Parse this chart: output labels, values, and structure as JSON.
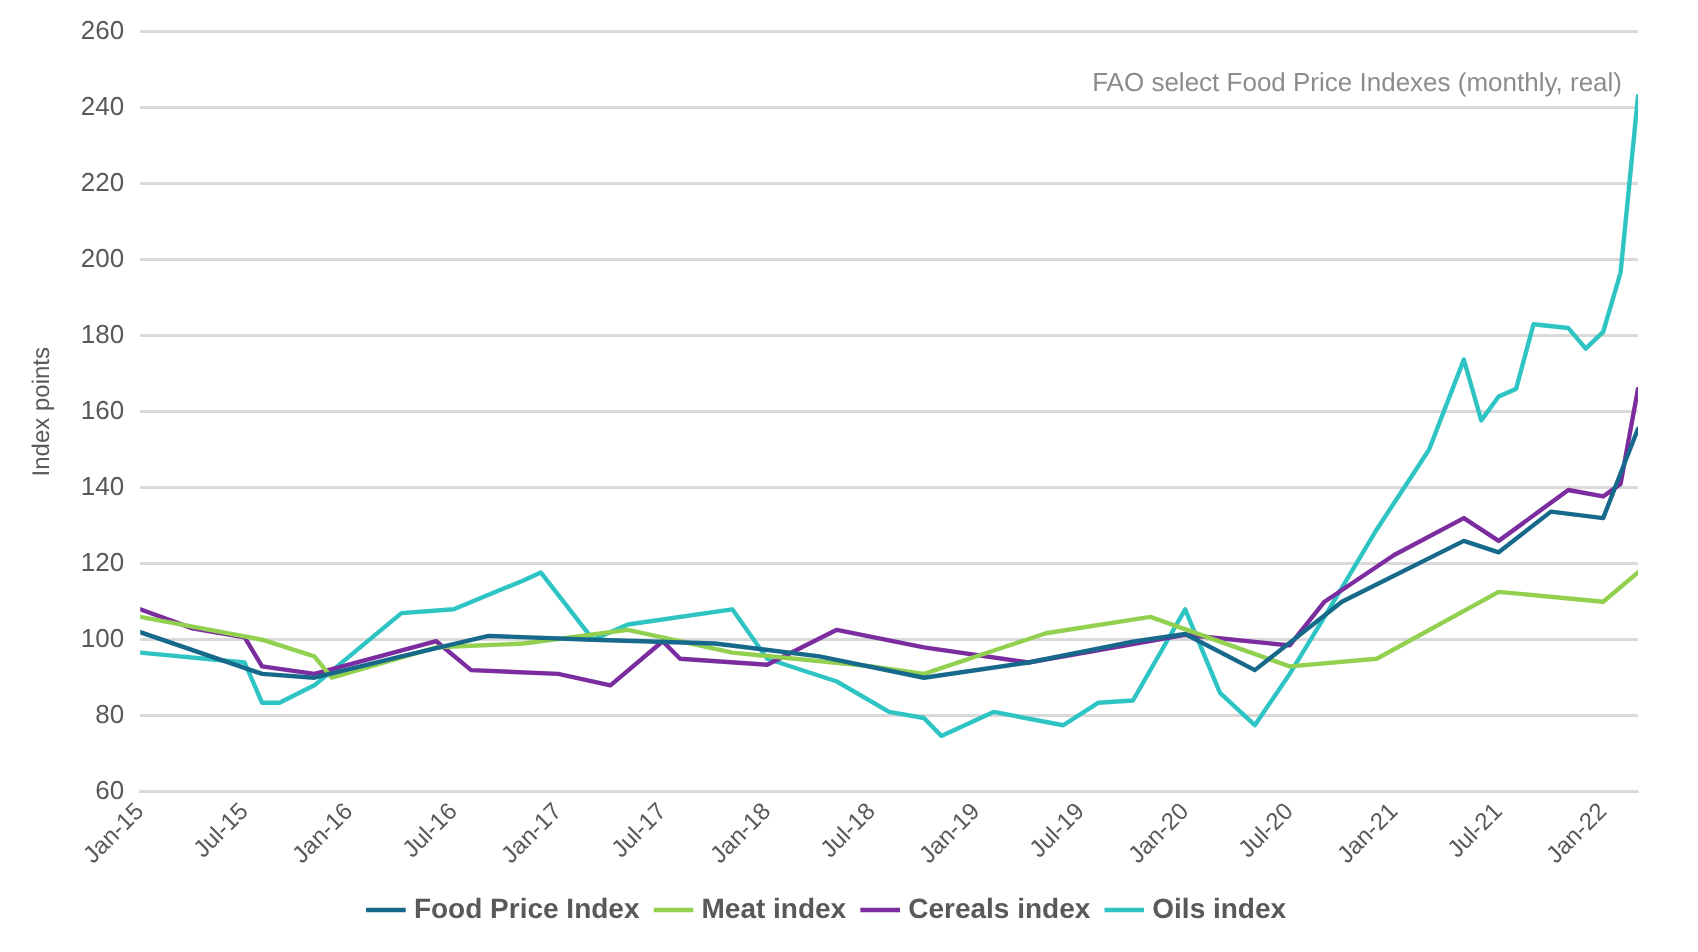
{
  "chart_data": {
    "type": "line",
    "title": "FAO select Food Price Indexes (monthly, real)",
    "ylabel": "Index points",
    "xlim": [
      "2015-01",
      "2022-03"
    ],
    "xticks": [
      {
        "value": "2015-01",
        "label": "Jan-15"
      },
      {
        "value": "2015-07",
        "label": "Jul-15"
      },
      {
        "value": "2016-01",
        "label": "Jan-16"
      },
      {
        "value": "2016-07",
        "label": "Jul-16"
      },
      {
        "value": "2017-01",
        "label": "Jan-17"
      },
      {
        "value": "2017-07",
        "label": "Jul-17"
      },
      {
        "value": "2018-01",
        "label": "Jan-18"
      },
      {
        "value": "2018-07",
        "label": "Jul-18"
      },
      {
        "value": "2019-01",
        "label": "Jan-19"
      },
      {
        "value": "2019-07",
        "label": "Jul-19"
      },
      {
        "value": "2020-01",
        "label": "Jan-20"
      },
      {
        "value": "2020-07",
        "label": "Jul-20"
      },
      {
        "value": "2021-01",
        "label": "Jan-21"
      },
      {
        "value": "2021-07",
        "label": "Jul-21"
      },
      {
        "value": "2022-01",
        "label": "Jan-22"
      }
    ],
    "ylim": [
      60,
      260
    ],
    "yticks": [
      60,
      80,
      100,
      120,
      140,
      160,
      180,
      200,
      220,
      240,
      260
    ],
    "grid": "y",
    "legend": "bottom",
    "marker": "none",
    "line_style": "solid",
    "series": [
      {
        "name": "Food Price Index",
        "color": "#17698c",
        "x": [
          "2015-01",
          "2015-08",
          "2015-11",
          "2016-04",
          "2016-09",
          "2017-03",
          "2017-10",
          "2018-04",
          "2018-10",
          "2019-04",
          "2019-10",
          "2020-01",
          "2020-05",
          "2020-10",
          "2021-05",
          "2021-07",
          "2021-10",
          "2022-01",
          "2022-03"
        ],
        "values": [
          102,
          91,
          90,
          95.6,
          101,
          100,
          99,
          95.6,
          90,
          94,
          99.5,
          101.5,
          92,
          110,
          126,
          123,
          133.7,
          132,
          155.5
        ]
      },
      {
        "name": "Meat index",
        "color": "#92d050",
        "x": [
          "2015-01",
          "2015-08",
          "2015-11",
          "2015-12",
          "2016-06",
          "2016-11",
          "2017-05",
          "2017-11",
          "2018-07",
          "2018-10",
          "2019-05",
          "2019-11",
          "2020-07",
          "2020-12",
          "2021-07",
          "2022-01",
          "2022-03"
        ],
        "values": [
          106,
          100,
          95.6,
          90,
          98,
          99,
          102.6,
          96.6,
          93,
          91,
          101.7,
          106,
          93,
          95,
          112.6,
          110,
          117.7
        ]
      },
      {
        "name": "Cereals index",
        "color": "#7b2c9e",
        "x": [
          "2015-01",
          "2015-04",
          "2015-07",
          "2015-08",
          "2015-11",
          "2016-06",
          "2016-08",
          "2017-01",
          "2017-04",
          "2017-07",
          "2017-08",
          "2018-01",
          "2018-05",
          "2018-10",
          "2019-04",
          "2020-01",
          "2020-07",
          "2020-09",
          "2021-01",
          "2021-05",
          "2021-07",
          "2021-11",
          "2022-01",
          "2022-02",
          "2022-03"
        ],
        "values": [
          108,
          103,
          100.6,
          93,
          91,
          99.6,
          92,
          91,
          88,
          99.6,
          95,
          93.4,
          102.6,
          98,
          94,
          101.3,
          98.5,
          110,
          122.3,
          132,
          126,
          139.4,
          137.7,
          141,
          166
        ]
      },
      {
        "name": "Oils index",
        "color": "#2ec4c4",
        "x": [
          "2015-01",
          "2015-07",
          "2015-08",
          "2015-09",
          "2015-11",
          "2016-04",
          "2016-07",
          "2016-11",
          "2016-12",
          "2017-03",
          "2017-05",
          "2017-11",
          "2018-01",
          "2018-05",
          "2018-08",
          "2018-10",
          "2018-11",
          "2019-02",
          "2019-06",
          "2019-08",
          "2019-10",
          "2020-01",
          "2020-03",
          "2020-05",
          "2020-07",
          "2020-09",
          "2020-12",
          "2021-03",
          "2021-05",
          "2021-06",
          "2021-07",
          "2021-08",
          "2021-09",
          "2021-11",
          "2021-12",
          "2022-01",
          "2022-02",
          "2022-03"
        ],
        "values": [
          96.6,
          94,
          83.4,
          83.4,
          88,
          107,
          108,
          115.6,
          117.7,
          100,
          104,
          108,
          95,
          89,
          81,
          79.4,
          74.7,
          81,
          77.5,
          83.4,
          84,
          108,
          86,
          77.5,
          91,
          106,
          129,
          150,
          173.7,
          157.7,
          164,
          166,
          183,
          182,
          176.6,
          181,
          196.6,
          243
        ]
      }
    ]
  }
}
